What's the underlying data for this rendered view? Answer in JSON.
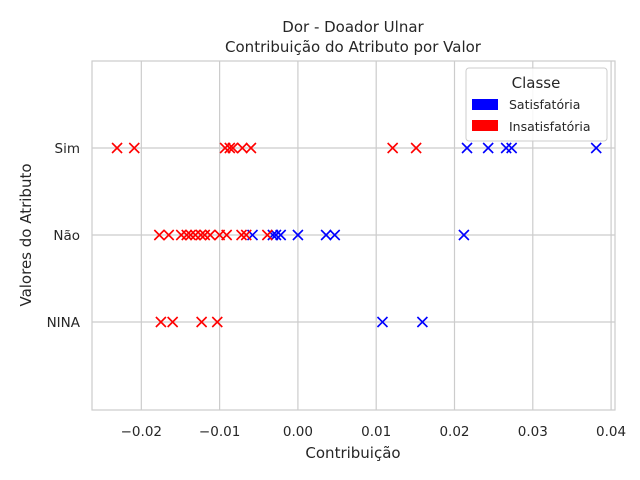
{
  "chart_data": {
    "type": "scatter",
    "title": "Dor - Doador Ulnar",
    "subtitle": "Contribuição do Atributo por Valor",
    "xlabel": "Contribuição",
    "ylabel": "Valores do Atributo",
    "xlim": [
      -0.0263,
      0.0405
    ],
    "x_ticks": [
      -0.02,
      -0.01,
      0.0,
      0.01,
      0.02,
      0.03,
      0.04
    ],
    "x_tick_labels": [
      "−0.02",
      "−0.01",
      "0.00",
      "0.01",
      "0.02",
      "0.03",
      "0.04"
    ],
    "categories": [
      "Sim",
      "Não",
      "NINA"
    ],
    "grid": true,
    "legend": {
      "title": "Classe",
      "placement": "top-right",
      "entries": [
        {
          "label": "Satisfatória",
          "color": "#0000ff"
        },
        {
          "label": "Insatisfatória",
          "color": "#ff0000"
        }
      ]
    },
    "marker": "x",
    "series": [
      {
        "name": "Satisfatória",
        "color": "#0000ff",
        "points": [
          {
            "category": "Sim",
            "x": 0.0216
          },
          {
            "category": "Sim",
            "x": 0.0243
          },
          {
            "category": "Sim",
            "x": 0.0266
          },
          {
            "category": "Sim",
            "x": 0.0273
          },
          {
            "category": "Sim",
            "x": 0.0381
          },
          {
            "category": "Não",
            "x": -0.0058
          },
          {
            "category": "Não",
            "x": -0.0032
          },
          {
            "category": "Não",
            "x": -0.0028
          },
          {
            "category": "Não",
            "x": -0.0022
          },
          {
            "category": "Não",
            "x": 0.0
          },
          {
            "category": "Não",
            "x": 0.0036
          },
          {
            "category": "Não",
            "x": 0.0047
          },
          {
            "category": "Não",
            "x": 0.0212
          },
          {
            "category": "NINA",
            "x": 0.0108
          },
          {
            "category": "NINA",
            "x": 0.0159
          }
        ]
      },
      {
        "name": "Insatisfatória",
        "color": "#ff0000",
        "points": [
          {
            "category": "Sim",
            "x": -0.0231
          },
          {
            "category": "Sim",
            "x": -0.0209
          },
          {
            "category": "Sim",
            "x": -0.0093
          },
          {
            "category": "Sim",
            "x": -0.0087
          },
          {
            "category": "Sim",
            "x": -0.0083
          },
          {
            "category": "Sim",
            "x": -0.0071
          },
          {
            "category": "Sim",
            "x": -0.006
          },
          {
            "category": "Sim",
            "x": 0.0121
          },
          {
            "category": "Sim",
            "x": 0.0151
          },
          {
            "category": "Não",
            "x": -0.0177
          },
          {
            "category": "Não",
            "x": -0.0165
          },
          {
            "category": "Não",
            "x": -0.0149
          },
          {
            "category": "Não",
            "x": -0.0142
          },
          {
            "category": "Não",
            "x": -0.0137
          },
          {
            "category": "Não",
            "x": -0.0131
          },
          {
            "category": "Não",
            "x": -0.0124
          },
          {
            "category": "Não",
            "x": -0.0119
          },
          {
            "category": "Não",
            "x": -0.0112
          },
          {
            "category": "Não",
            "x": -0.01
          },
          {
            "category": "Não",
            "x": -0.0091
          },
          {
            "category": "Não",
            "x": -0.0072
          },
          {
            "category": "Não",
            "x": -0.0066
          },
          {
            "category": "Não",
            "x": -0.0039
          },
          {
            "category": "NINA",
            "x": -0.0175
          },
          {
            "category": "NINA",
            "x": -0.016
          },
          {
            "category": "NINA",
            "x": -0.0123
          },
          {
            "category": "NINA",
            "x": -0.0103
          }
        ]
      }
    ]
  }
}
